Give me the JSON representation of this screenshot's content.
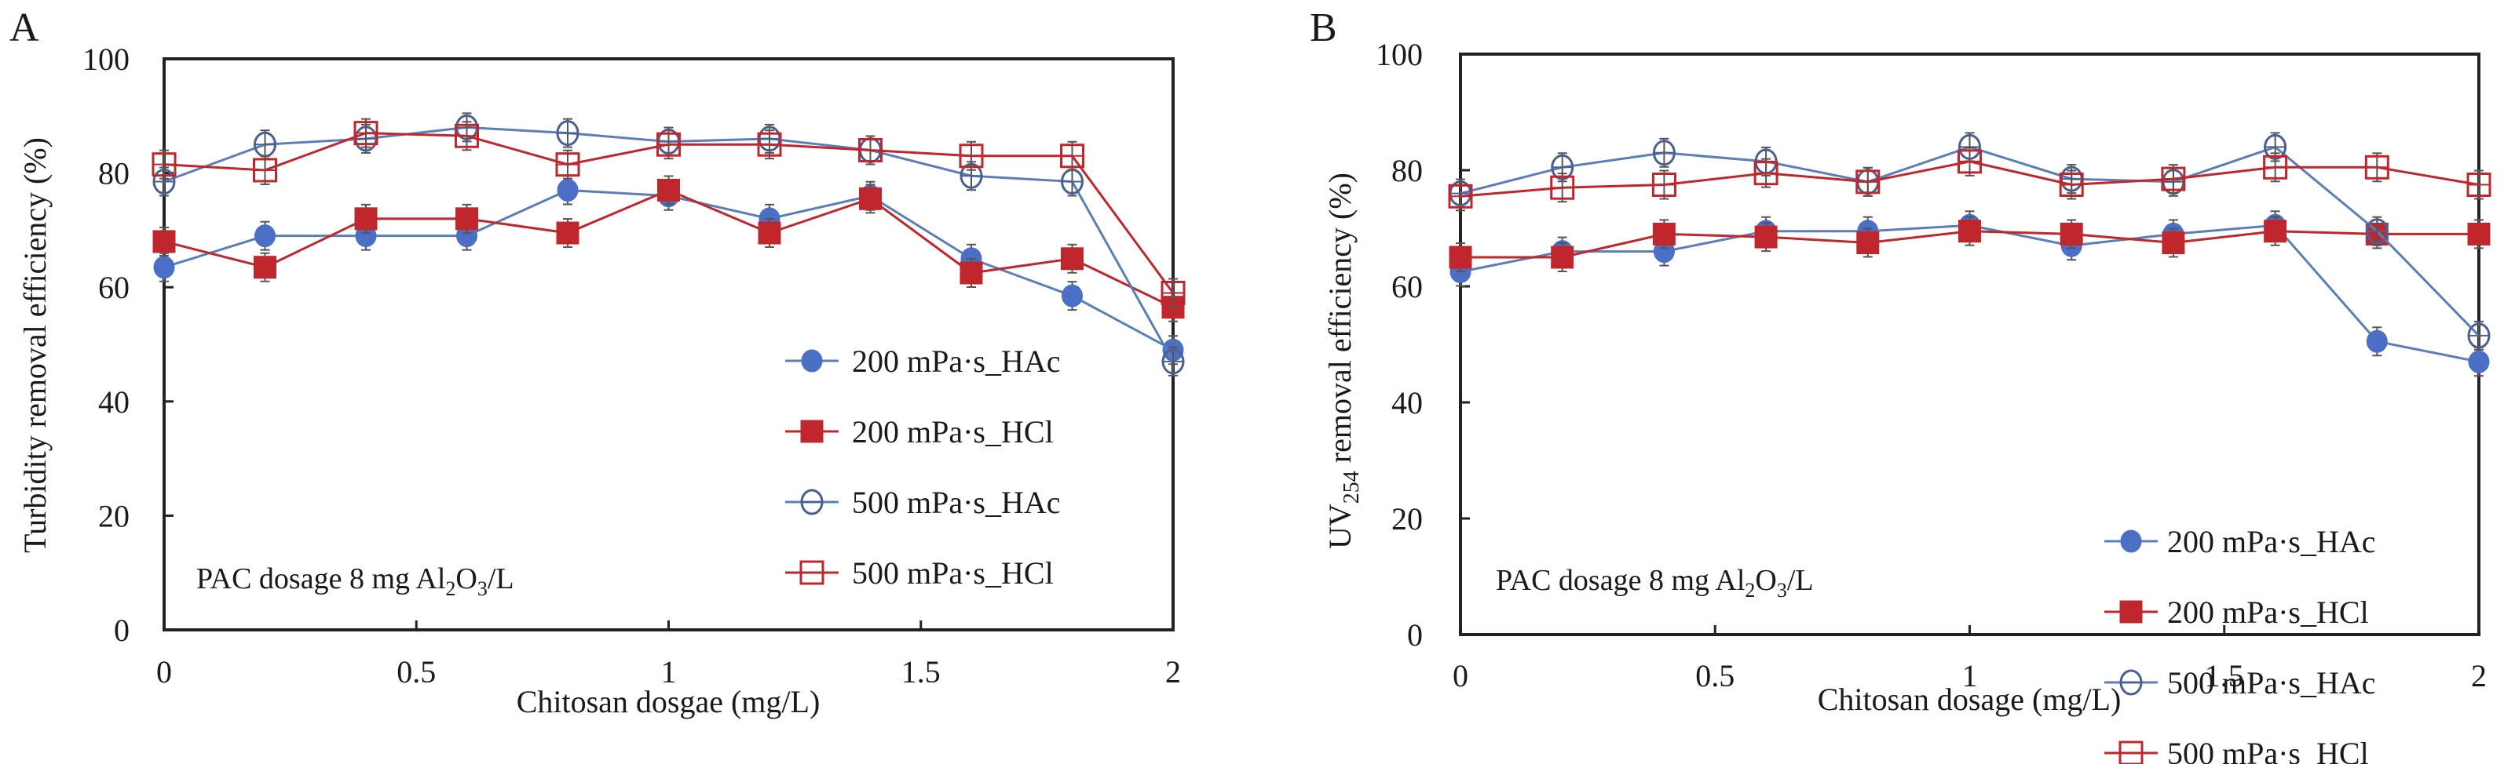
{
  "chart_data": [
    {
      "panel": "A",
      "type": "line",
      "title": "",
      "xlabel": "Chitosan  dosgae (mg/L)",
      "ylabel": "Turbidity  removal  efficiency  (%)",
      "xlim": [
        0,
        2
      ],
      "ylim": [
        0,
        100
      ],
      "xticks": [
        0,
        0.5,
        1,
        1.5,
        2
      ],
      "xtick_labels": [
        "0",
        "0.5",
        "1",
        "1.5",
        "2"
      ],
      "yticks": [
        0,
        20,
        40,
        60,
        80,
        100
      ],
      "ytick_labels": [
        "0",
        "20",
        "40",
        "60",
        "80",
        "100"
      ],
      "grid": false,
      "legend_position": "lower-right",
      "annotation": {
        "text_parts": [
          "PAC dosage 8 mg Al",
          "2",
          "O",
          "3",
          "/L"
        ]
      },
      "x": [
        0,
        0.2,
        0.4,
        0.6,
        0.8,
        1.0,
        1.2,
        1.4,
        1.6,
        1.8,
        2.0
      ],
      "series": [
        {
          "name": "200 mPa·s_HAc",
          "marker": "filled-circle",
          "color": "#4a6fc4",
          "line_color": "#5a7fb8",
          "values": [
            63.5,
            69,
            69,
            69,
            77,
            76,
            72,
            76,
            65,
            58.5,
            49
          ]
        },
        {
          "name": "200 mPa·s_HCl",
          "marker": "filled-square",
          "color": "#c0272d",
          "line_color": "#c0272d",
          "values": [
            68,
            63.5,
            72,
            72,
            69.5,
            77,
            69.5,
            75.5,
            62.5,
            65,
            56.5
          ]
        },
        {
          "name": "500 mPa·s_HAc",
          "marker": "open-circle",
          "color": "#4a6090",
          "line_color": "#5a7fb8",
          "values": [
            78.5,
            85,
            86,
            88,
            87,
            85.5,
            86,
            84,
            79.5,
            78.5,
            47
          ]
        },
        {
          "name": "500 mPa·s_HCl",
          "marker": "open-square",
          "color": "#c0272d",
          "line_color": "#c0272d",
          "values": [
            81.5,
            80.5,
            87,
            86.5,
            81.5,
            85,
            85,
            84,
            83,
            83,
            59
          ]
        }
      ]
    },
    {
      "panel": "B",
      "type": "line",
      "title": "",
      "xlabel": "Chitosan  dosage  (mg/L)",
      "ylabel_parts": [
        "UV",
        "254",
        " removal  efficiency  (%)"
      ],
      "xlim": [
        0,
        2
      ],
      "ylim": [
        0,
        100
      ],
      "xticks": [
        0,
        0.5,
        1,
        1.5,
        2
      ],
      "xtick_labels": [
        "0",
        "0.5",
        "1",
        "1.5",
        "2"
      ],
      "yticks": [
        0,
        20,
        40,
        60,
        80,
        100
      ],
      "ytick_labels": [
        "0",
        "20",
        "40",
        "60",
        "80",
        "100"
      ],
      "grid": false,
      "legend_position": "lower-right",
      "annotation": {
        "text_parts": [
          "PAC dosage 8 mg Al",
          "2",
          "O",
          "3",
          "/L"
        ]
      },
      "x": [
        0,
        0.2,
        0.4,
        0.6,
        0.8,
        1.0,
        1.2,
        1.4,
        1.6,
        1.8,
        2.0
      ],
      "series": [
        {
          "name": "200 mPa·s_HAc",
          "marker": "filled-circle",
          "color": "#4a6fc4",
          "line_color": "#5a7fb8",
          "values": [
            62.5,
            66,
            66,
            69.5,
            69.5,
            70.5,
            67,
            69,
            70.5,
            50.5,
            47
          ]
        },
        {
          "name": "200 mPa·s_HCl",
          "marker": "filled-square",
          "color": "#c0272d",
          "line_color": "#c0272d",
          "values": [
            65,
            65,
            69,
            68.5,
            67.5,
            69.5,
            69,
            67.5,
            69.5,
            69,
            69
          ]
        },
        {
          "name": "500 mPa·s_HAc",
          "marker": "open-circle",
          "color": "#4a6090",
          "line_color": "#5a7fb8",
          "values": [
            76,
            80.5,
            83,
            81.5,
            78,
            84,
            78.5,
            78,
            84,
            69.5,
            51.5
          ]
        },
        {
          "name": "500 mPa·s_HCl",
          "marker": "open-square",
          "color": "#c0272d",
          "line_color": "#c0272d",
          "values": [
            75.5,
            77,
            77.5,
            79.5,
            78,
            81.5,
            77.5,
            78.5,
            80.5,
            80.5,
            77.5
          ]
        }
      ]
    }
  ],
  "panels": {
    "A": {
      "label": "A"
    },
    "B": {
      "label": "B"
    }
  }
}
